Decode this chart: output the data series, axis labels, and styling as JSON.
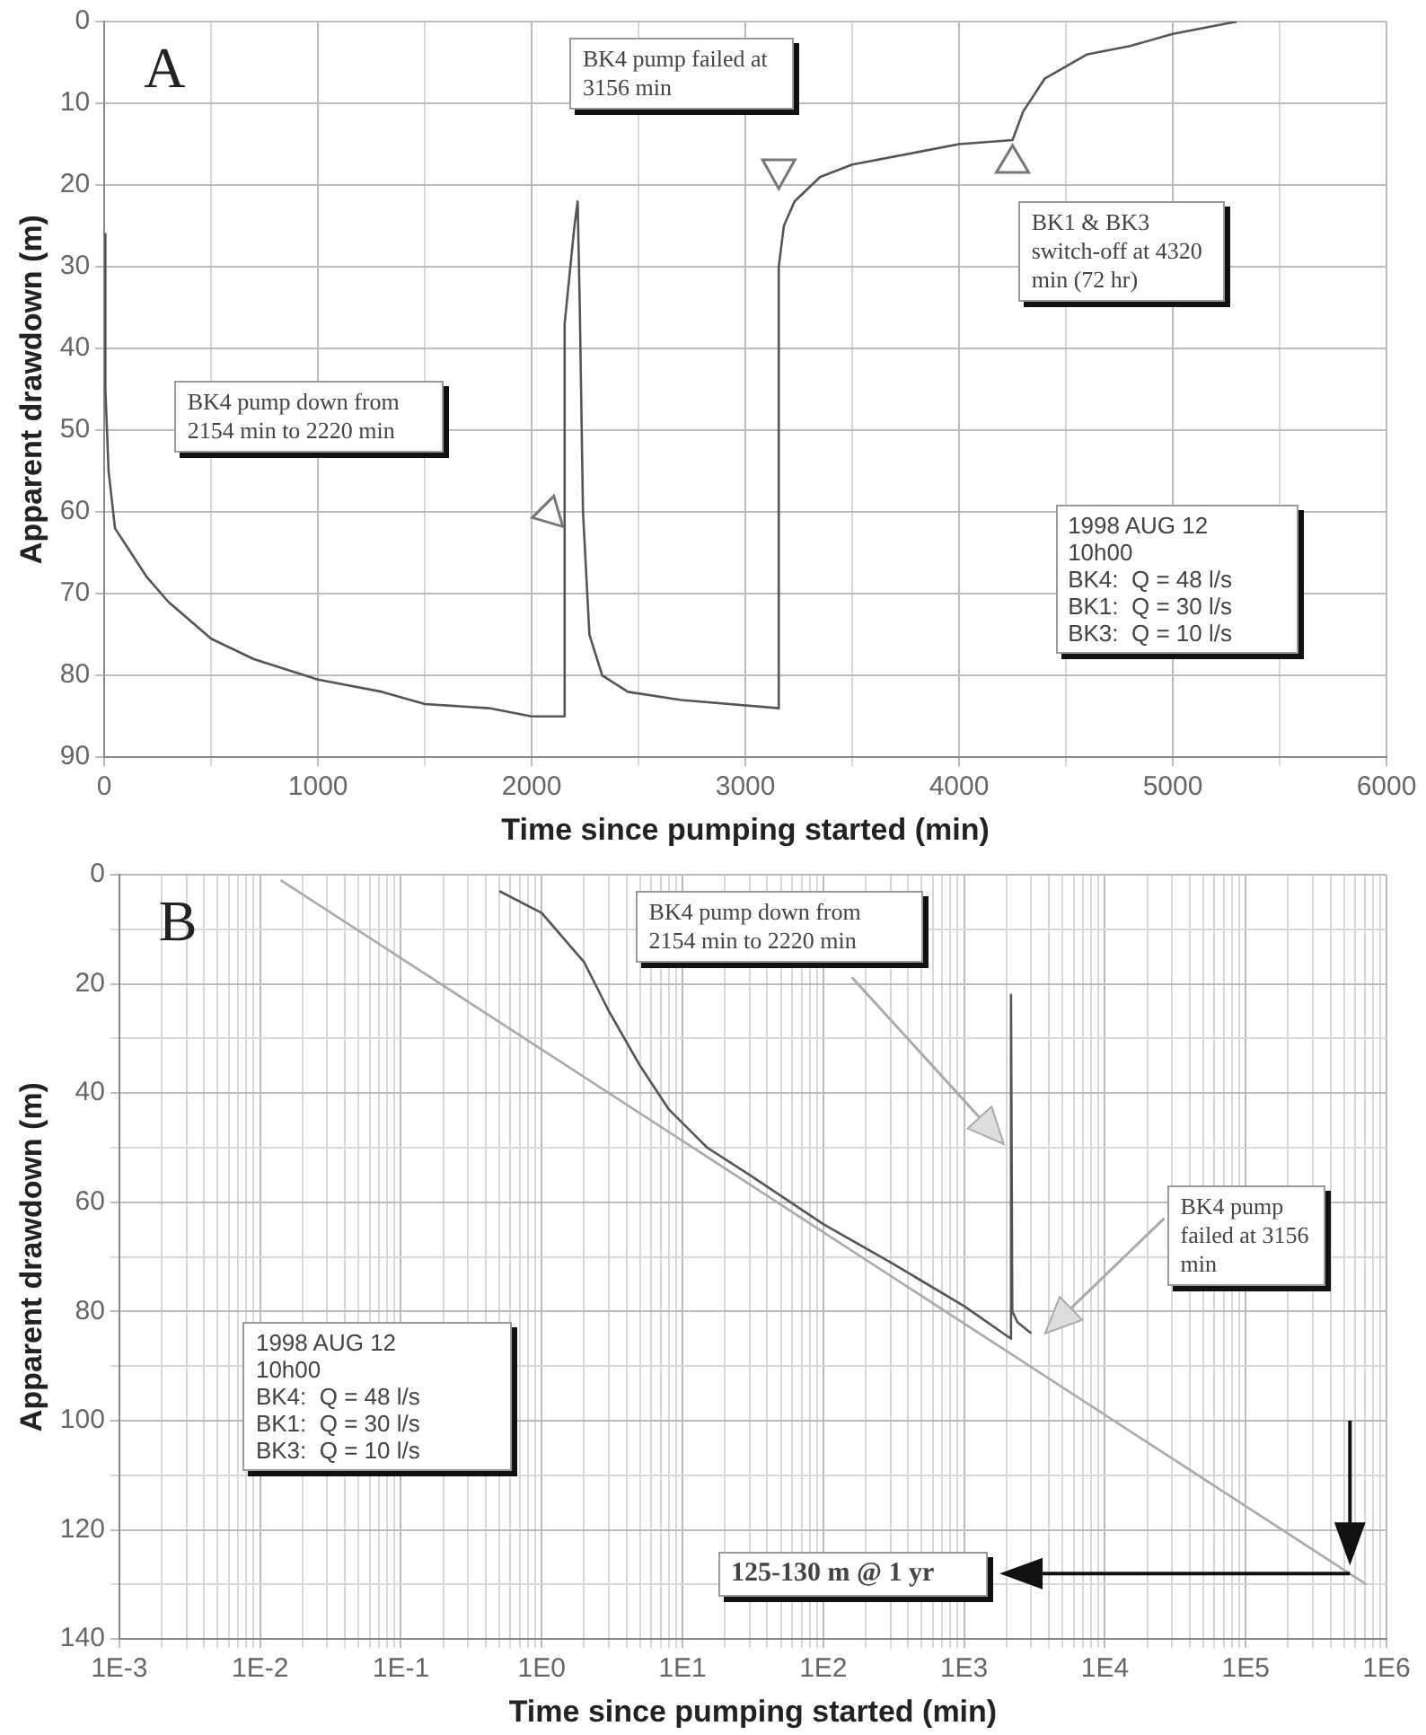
{
  "chart_data": [
    {
      "type": "line",
      "title": "A",
      "xlabel": "Time since pumping started (min)",
      "ylabel": "Apparent drawdown (m)",
      "xlim": [
        0,
        6000
      ],
      "ylim": [
        90,
        0
      ],
      "xticks": [
        0,
        {
          "value": 500,
          "label": null
        },
        1000,
        {
          "value": 1500,
          "label": null
        },
        2000,
        {
          "value": 2500,
          "label": null
        },
        3000,
        {
          "value": 3500,
          "label": null
        },
        4000,
        {
          "value": 4500,
          "label": null
        },
        5000,
        {
          "value": 5500,
          "label": null
        },
        6000
      ],
      "yticks": [
        0,
        10,
        20,
        30,
        40,
        50,
        60,
        70,
        80,
        90
      ],
      "grid": true,
      "marker": "none",
      "line_style": "solid",
      "series": [
        {
          "color": "#555555",
          "x": [
            0,
            5,
            20,
            50,
            100,
            200,
            300,
            500,
            700,
            1000,
            1300,
            1500,
            1800,
            2000,
            2154,
            2154,
            2200,
            2215,
            2225,
            2240,
            2270,
            2330,
            2450,
            2700,
            3156,
            3156,
            3180,
            3230,
            3350,
            3500,
            3800,
            4000,
            4250,
            4300,
            4400,
            4600,
            4800,
            5000,
            5300
          ],
          "values": [
            26,
            45,
            55,
            62,
            64,
            68,
            71,
            75.5,
            78,
            80.5,
            82,
            83.5,
            84,
            85,
            85,
            37,
            25,
            22,
            35,
            60,
            75,
            80,
            82,
            83,
            84,
            30,
            25,
            22,
            19,
            17.5,
            16,
            15,
            14.5,
            11,
            7,
            4,
            3,
            1.5,
            0
          ]
        }
      ],
      "annotations": [
        "BK4 pump down from 2154 min to 2220 min",
        "BK4 pump failed at 3156 min",
        "BK1 & BK3 switch-off at 4320 min (72 hr)",
        "1998 AUG 12\n10h00\nBK4:  Q = 48 l/s\nBK1:  Q = 30 l/s\nBK3:  Q = 10 l/s"
      ]
    },
    {
      "type": "line",
      "title": "B",
      "xlabel": "Time since pumping started (min)",
      "ylabel": "Apparent drawdown (m)",
      "log": "x",
      "xlim": [
        0.001,
        1000000
      ],
      "ylim": [
        140,
        0
      ],
      "xticks": [
        {
          "value": 0.001,
          "label": "1E-3"
        },
        {
          "value": 0.002,
          "label": null
        },
        {
          "value": 0.003,
          "label": null
        },
        {
          "value": 0.004,
          "label": null
        },
        {
          "value": 0.005,
          "label": null
        },
        {
          "value": 0.006,
          "label": null
        },
        {
          "value": 0.007,
          "label": null
        },
        {
          "value": 0.008,
          "label": null
        },
        {
          "value": 0.009,
          "label": null
        },
        {
          "value": 0.01,
          "label": "1E-2"
        },
        {
          "value": 0.02,
          "label": null
        },
        {
          "value": 0.03,
          "label": null
        },
        {
          "value": 0.04,
          "label": null
        },
        {
          "value": 0.05,
          "label": null
        },
        {
          "value": 0.06,
          "label": null
        },
        {
          "value": 0.07,
          "label": null
        },
        {
          "value": 0.08,
          "label": null
        },
        {
          "value": 0.09,
          "label": null
        },
        {
          "value": 0.1,
          "label": "1E-1"
        },
        {
          "value": 0.2,
          "label": null
        },
        {
          "value": 0.3,
          "label": null
        },
        {
          "value": 0.4,
          "label": null
        },
        {
          "value": 0.5,
          "label": null
        },
        {
          "value": 0.6,
          "label": null
        },
        {
          "value": 0.7,
          "label": null
        },
        {
          "value": 0.8,
          "label": null
        },
        {
          "value": 0.9,
          "label": null
        },
        {
          "value": 1,
          "label": "1E0"
        },
        {
          "value": 2,
          "label": null
        },
        {
          "value": 3,
          "label": null
        },
        {
          "value": 4,
          "label": null
        },
        {
          "value": 5,
          "label": null
        },
        {
          "value": 6,
          "label": null
        },
        {
          "value": 7,
          "label": null
        },
        {
          "value": 8,
          "label": null
        },
        {
          "value": 9,
          "label": null
        },
        {
          "value": 10,
          "label": "1E1"
        },
        {
          "value": 20,
          "label": null
        },
        {
          "value": 30,
          "label": null
        },
        {
          "value": 40,
          "label": null
        },
        {
          "value": 50,
          "label": null
        },
        {
          "value": 60,
          "label": null
        },
        {
          "value": 70,
          "label": null
        },
        {
          "value": 80,
          "label": null
        },
        {
          "value": 90,
          "label": null
        },
        {
          "value": 100,
          "label": "1E2"
        },
        {
          "value": 200,
          "label": null
        },
        {
          "value": 300,
          "label": null
        },
        {
          "value": 400,
          "label": null
        },
        {
          "value": 500,
          "label": null
        },
        {
          "value": 600,
          "label": null
        },
        {
          "value": 700,
          "label": null
        },
        {
          "value": 800,
          "label": null
        },
        {
          "value": 900,
          "label": null
        },
        {
          "value": 1000,
          "label": "1E3"
        },
        {
          "value": 2000,
          "label": null
        },
        {
          "value": 3000,
          "label": null
        },
        {
          "value": 4000,
          "label": null
        },
        {
          "value": 5000,
          "label": null
        },
        {
          "value": 6000,
          "label": null
        },
        {
          "value": 7000,
          "label": null
        },
        {
          "value": 8000,
          "label": null
        },
        {
          "value": 9000,
          "label": null
        },
        {
          "value": 10000,
          "label": "1E4"
        },
        {
          "value": 20000,
          "label": null
        },
        {
          "value": 30000,
          "label": null
        },
        {
          "value": 40000,
          "label": null
        },
        {
          "value": 50000,
          "label": null
        },
        {
          "value": 60000,
          "label": null
        },
        {
          "value": 70000,
          "label": null
        },
        {
          "value": 80000,
          "label": null
        },
        {
          "value": 90000,
          "label": null
        },
        {
          "value": 100000,
          "label": "1E5"
        },
        {
          "value": 200000,
          "label": null
        },
        {
          "value": 300000,
          "label": null
        },
        {
          "value": 400000,
          "label": null
        },
        {
          "value": 500000,
          "label": null
        },
        {
          "value": 600000,
          "label": null
        },
        {
          "value": 700000,
          "label": null
        },
        {
          "value": 800000,
          "label": null
        },
        {
          "value": 900000,
          "label": null
        },
        {
          "value": 1000000,
          "label": "1E6"
        }
      ],
      "yticks": [
        0,
        {
          "value": 10,
          "label": null
        },
        20,
        {
          "value": 30,
          "label": null
        },
        40,
        {
          "value": 50,
          "label": null
        },
        60,
        {
          "value": 70,
          "label": null
        },
        80,
        {
          "value": 90,
          "label": null
        },
        100,
        {
          "value": 110,
          "label": null
        },
        120,
        {
          "value": 130,
          "label": null
        },
        140
      ],
      "grid": true,
      "marker": "none",
      "line_style": "solid",
      "series": [
        {
          "color": "#555555",
          "x": [
            0.5,
            1,
            2,
            3,
            5,
            8,
            15,
            30,
            100,
            300,
            1000,
            2154,
            2154,
            2200,
            2400,
            3000
          ],
          "values": [
            3,
            7,
            16,
            25,
            35,
            43,
            50,
            55,
            64,
            71,
            79,
            85,
            22,
            80,
            82,
            84
          ]
        },
        {
          "type": "line",
          "color": "#aaaaaa",
          "x": [
            0.014,
            720000
          ],
          "values": [
            1,
            130
          ]
        }
      ],
      "annotations": [
        "BK4 pump down from 2154 min to 2220 min",
        "BK4 pump failed at 3156 min",
        "1998 AUG 12\n10h00\nBK4:  Q = 48 l/s\nBK1:  Q = 30 l/s\nBK3:  Q = 10 l/s",
        "125-130 m @ 1 yr"
      ]
    }
  ]
}
